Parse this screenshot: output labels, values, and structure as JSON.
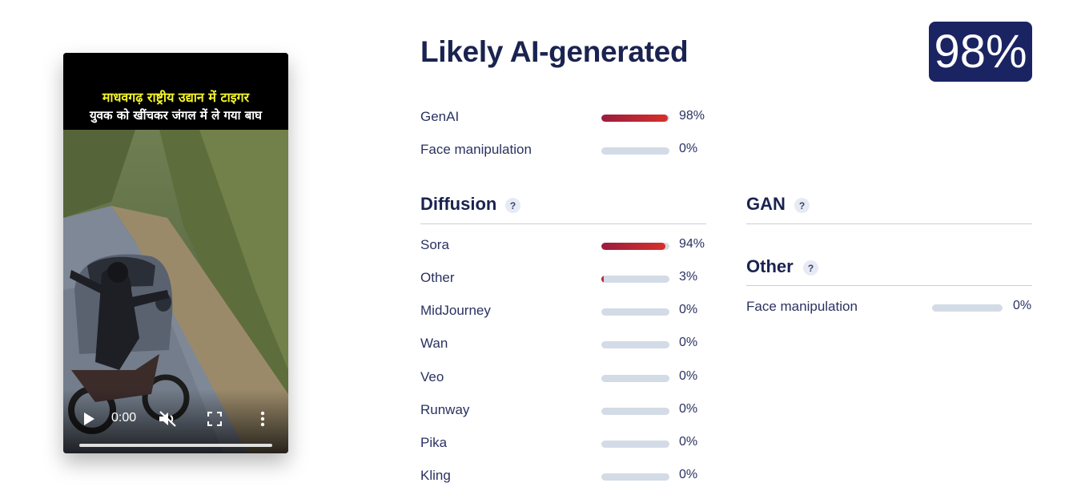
{
  "video": {
    "caption_line1": "माधवगढ़ राष्ट्रीय उद्यान में टाइगर",
    "caption_line2": "युवक को खींचकर जंगल में ले गया बाघ",
    "time": "0:00",
    "progress": 0
  },
  "result": {
    "headline": "Likely AI-generated",
    "score": "98%"
  },
  "summary": [
    {
      "label": "GenAI",
      "value": 98,
      "display": "98%"
    },
    {
      "label": "Face manipulation",
      "value": 0,
      "display": "0%"
    }
  ],
  "diffusion": {
    "title": "Diffusion",
    "help": "?",
    "items": [
      {
        "label": "Sora",
        "value": 94,
        "display": "94%"
      },
      {
        "label": "Other",
        "value": 3,
        "display": "3%"
      },
      {
        "label": "MidJourney",
        "value": 0,
        "display": "0%"
      },
      {
        "label": "Wan",
        "value": 0,
        "display": "0%"
      },
      {
        "label": "Veo",
        "value": 0,
        "display": "0%"
      },
      {
        "label": "Runway",
        "value": 0,
        "display": "0%"
      },
      {
        "label": "Pika",
        "value": 0,
        "display": "0%"
      },
      {
        "label": "Kling",
        "value": 0,
        "display": "0%"
      }
    ]
  },
  "gan": {
    "title": "GAN",
    "help": "?"
  },
  "other": {
    "title": "Other",
    "help": "?",
    "items": [
      {
        "label": "Face manipulation",
        "value": 0,
        "display": "0%"
      }
    ]
  },
  "colors": {
    "badge_bg": "#1b2462",
    "bar_track": "#d3dbe6",
    "bar_fill_start": "#9b1c3f",
    "bar_fill_end": "#d6302a"
  }
}
